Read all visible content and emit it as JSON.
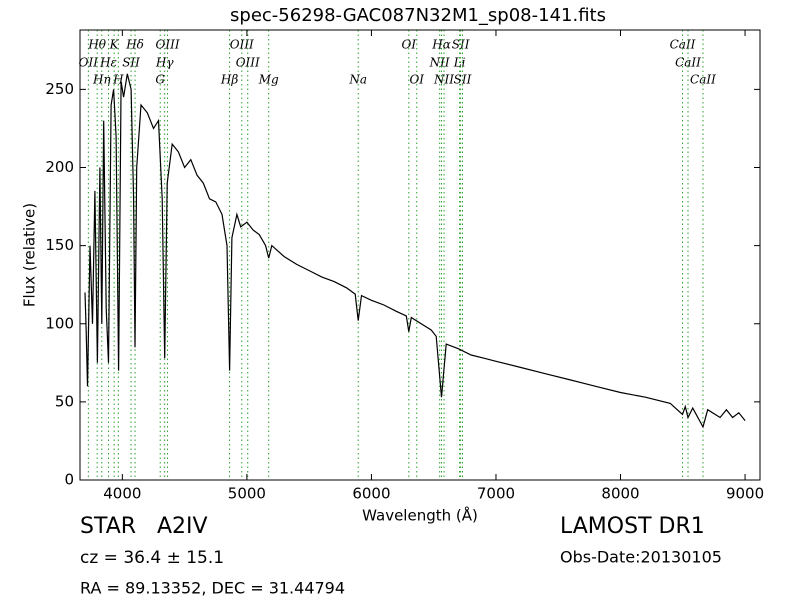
{
  "chart_data": {
    "type": "line",
    "title": "spec-56298-GAC087N32M1_sp08-141.fits",
    "x_label": "Wavelength (Å)",
    "y_label": "Flux (relative)",
    "xlim": [
      3660,
      9120
    ],
    "ylim": [
      0,
      288
    ],
    "xticks": [
      4000,
      5000,
      6000,
      7000,
      8000,
      9000
    ],
    "yticks": [
      0,
      50,
      100,
      150,
      200,
      250
    ],
    "x": [
      3700,
      3710,
      3720,
      3740,
      3760,
      3780,
      3800,
      3820,
      3835,
      3850,
      3870,
      3889,
      3910,
      3930,
      3950,
      3970,
      3990,
      4010,
      4040,
      4070,
      4090,
      4102,
      4115,
      4150,
      4200,
      4250,
      4290,
      4320,
      4340,
      4360,
      4400,
      4450,
      4500,
      4550,
      4600,
      4650,
      4700,
      4750,
      4800,
      4840,
      4861,
      4880,
      4920,
      4950,
      5000,
      5050,
      5100,
      5150,
      5175,
      5200,
      5300,
      5400,
      5500,
      5600,
      5700,
      5800,
      5870,
      5894,
      5920,
      6000,
      6100,
      6200,
      6280,
      6300,
      6320,
      6400,
      6480,
      6520,
      6563,
      6600,
      6700,
      6800,
      6900,
      7000,
      7200,
      7400,
      7600,
      7800,
      8000,
      8200,
      8400,
      8498,
      8520,
      8542,
      8580,
      8662,
      8700,
      8800,
      8850,
      8900,
      8950,
      9000
    ],
    "series": [
      {
        "color": "#000000",
        "values": [
          120,
          95,
          60,
          150,
          100,
          185,
          75,
          200,
          100,
          230,
          110,
          75,
          240,
          250,
          220,
          70,
          255,
          245,
          260,
          250,
          180,
          85,
          200,
          240,
          235,
          225,
          230,
          180,
          78,
          190,
          215,
          210,
          200,
          205,
          195,
          190,
          180,
          178,
          170,
          150,
          70,
          155,
          170,
          162,
          165,
          160,
          157,
          150,
          142,
          150,
          143,
          138,
          134,
          130,
          127,
          123,
          119,
          102,
          118,
          115,
          112,
          108,
          105,
          95,
          104,
          100,
          96,
          92,
          53,
          87,
          84,
          80,
          78,
          76,
          72,
          68,
          64,
          60,
          56,
          53,
          49,
          42,
          47,
          40,
          46,
          34,
          45,
          40,
          45,
          40,
          43,
          38
        ]
      }
    ],
    "line_color": "#2ca02c",
    "line_markers": [
      {
        "label": "OII",
        "wavelength": 3727
      },
      {
        "label": "Hθ",
        "wavelength": 3798
      },
      {
        "label": "Hη",
        "wavelength": 3835
      },
      {
        "label": "Hε",
        "wavelength": 3889
      },
      {
        "label": "K",
        "wavelength": 3934
      },
      {
        "label": "H",
        "wavelength": 3968
      },
      {
        "label": "SII",
        "wavelength": 4070
      },
      {
        "label": "Hδ",
        "wavelength": 4102
      },
      {
        "label": "G",
        "wavelength": 4304
      },
      {
        "label": "Hγ",
        "wavelength": 4340
      },
      {
        "label": "OIII",
        "wavelength": 4363
      },
      {
        "label": "Hβ",
        "wavelength": 4861
      },
      {
        "label": "OIII",
        "wavelength": 4959
      },
      {
        "label": "OIII",
        "wavelength": 5007
      },
      {
        "label": "Mg",
        "wavelength": 5175
      },
      {
        "label": "Na",
        "wavelength": 5894
      },
      {
        "label": "OI",
        "wavelength": 6300
      },
      {
        "label": "OI",
        "wavelength": 6364
      },
      {
        "label": "NII",
        "wavelength": 6548
      },
      {
        "label": "Hα",
        "wavelength": 6563
      },
      {
        "label": "NII",
        "wavelength": 6583
      },
      {
        "label": "SII",
        "wavelength": 6716
      },
      {
        "label": "Li",
        "wavelength": 6708
      },
      {
        "label": "SII",
        "wavelength": 6731
      },
      {
        "label": "CaII",
        "wavelength": 8498
      },
      {
        "label": "CaII",
        "wavelength": 8542
      },
      {
        "label": "CaII",
        "wavelength": 8662
      }
    ]
  },
  "footer": {
    "object": "STAR   A2IV",
    "redshift": "cz = 36.4 ± 15.1",
    "coords": "RA = 89.13352, DEC = 31.44794",
    "survey": "LAMOST DR1",
    "obs_date": "Obs-Date:20130105"
  }
}
